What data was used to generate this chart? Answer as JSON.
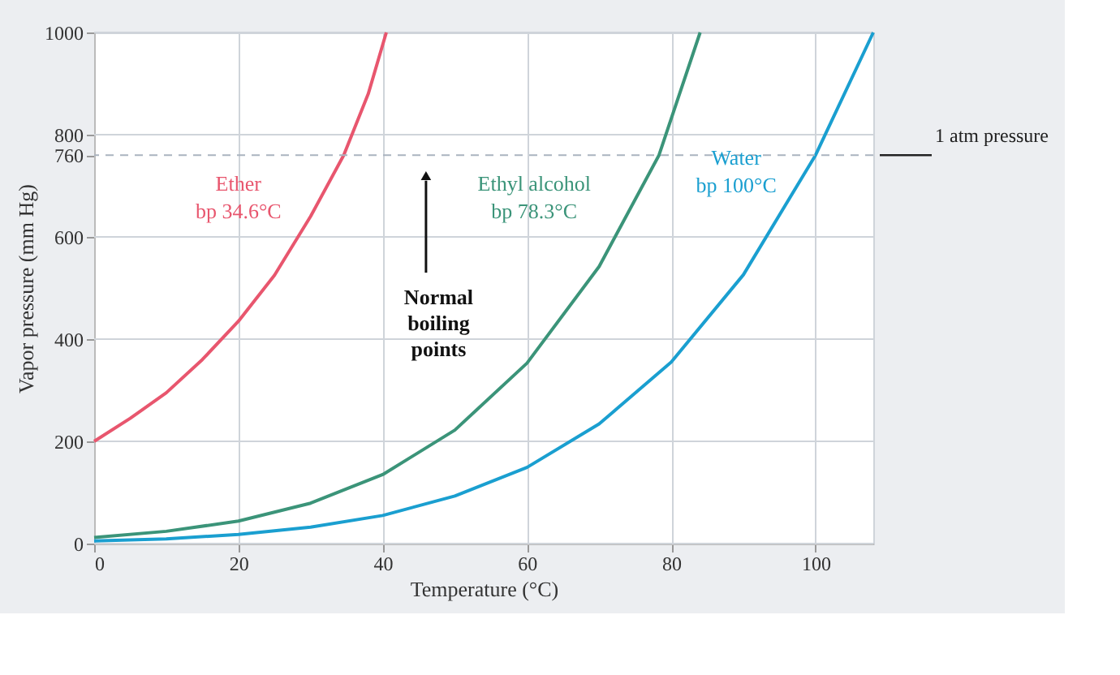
{
  "chart_data": {
    "type": "line",
    "xlabel": "Temperature (°C)",
    "ylabel": "Vapor pressure (mm Hg)",
    "xlim": [
      0,
      108
    ],
    "xticks": [
      0,
      20,
      40,
      60,
      80,
      100
    ],
    "ylim": [
      0,
      1000
    ],
    "yticks": [
      0,
      200,
      400,
      600,
      760,
      800,
      1000
    ],
    "grid": true,
    "legend": false,
    "marker": "none",
    "line_style": "solid",
    "series": [
      {
        "name": "Ether",
        "color": "#e8566e",
        "x": [
          0,
          5,
          10,
          15,
          20,
          25,
          30,
          34.6,
          38,
          40.5
        ],
        "values": [
          200,
          245,
          295,
          360,
          435,
          525,
          640,
          760,
          880,
          1000
        ]
      },
      {
        "name": "Ethyl alcohol",
        "color": "#3b9479",
        "x": [
          0,
          10,
          20,
          30,
          40,
          50,
          60,
          70,
          78.3,
          84
        ],
        "values": [
          12,
          24,
          44,
          79,
          135,
          222,
          353,
          542,
          760,
          1000
        ]
      },
      {
        "name": "Water",
        "color": "#1a9fd0",
        "x": [
          0,
          10,
          20,
          30,
          40,
          50,
          60,
          70,
          80,
          90,
          100,
          108
        ],
        "values": [
          5,
          9,
          18,
          32,
          55,
          93,
          149,
          234,
          355,
          526,
          760,
          1000
        ]
      }
    ],
    "ref_lines": [
      {
        "axis": "y",
        "value": 760,
        "label": "1 atm pressure",
        "color": "#aab4c0",
        "line_style": "dashed"
      }
    ],
    "annotations": [
      "bp 34.6°C",
      "bp 78.3°C",
      "bp 100°C",
      "Normal boiling points"
    ]
  }
}
